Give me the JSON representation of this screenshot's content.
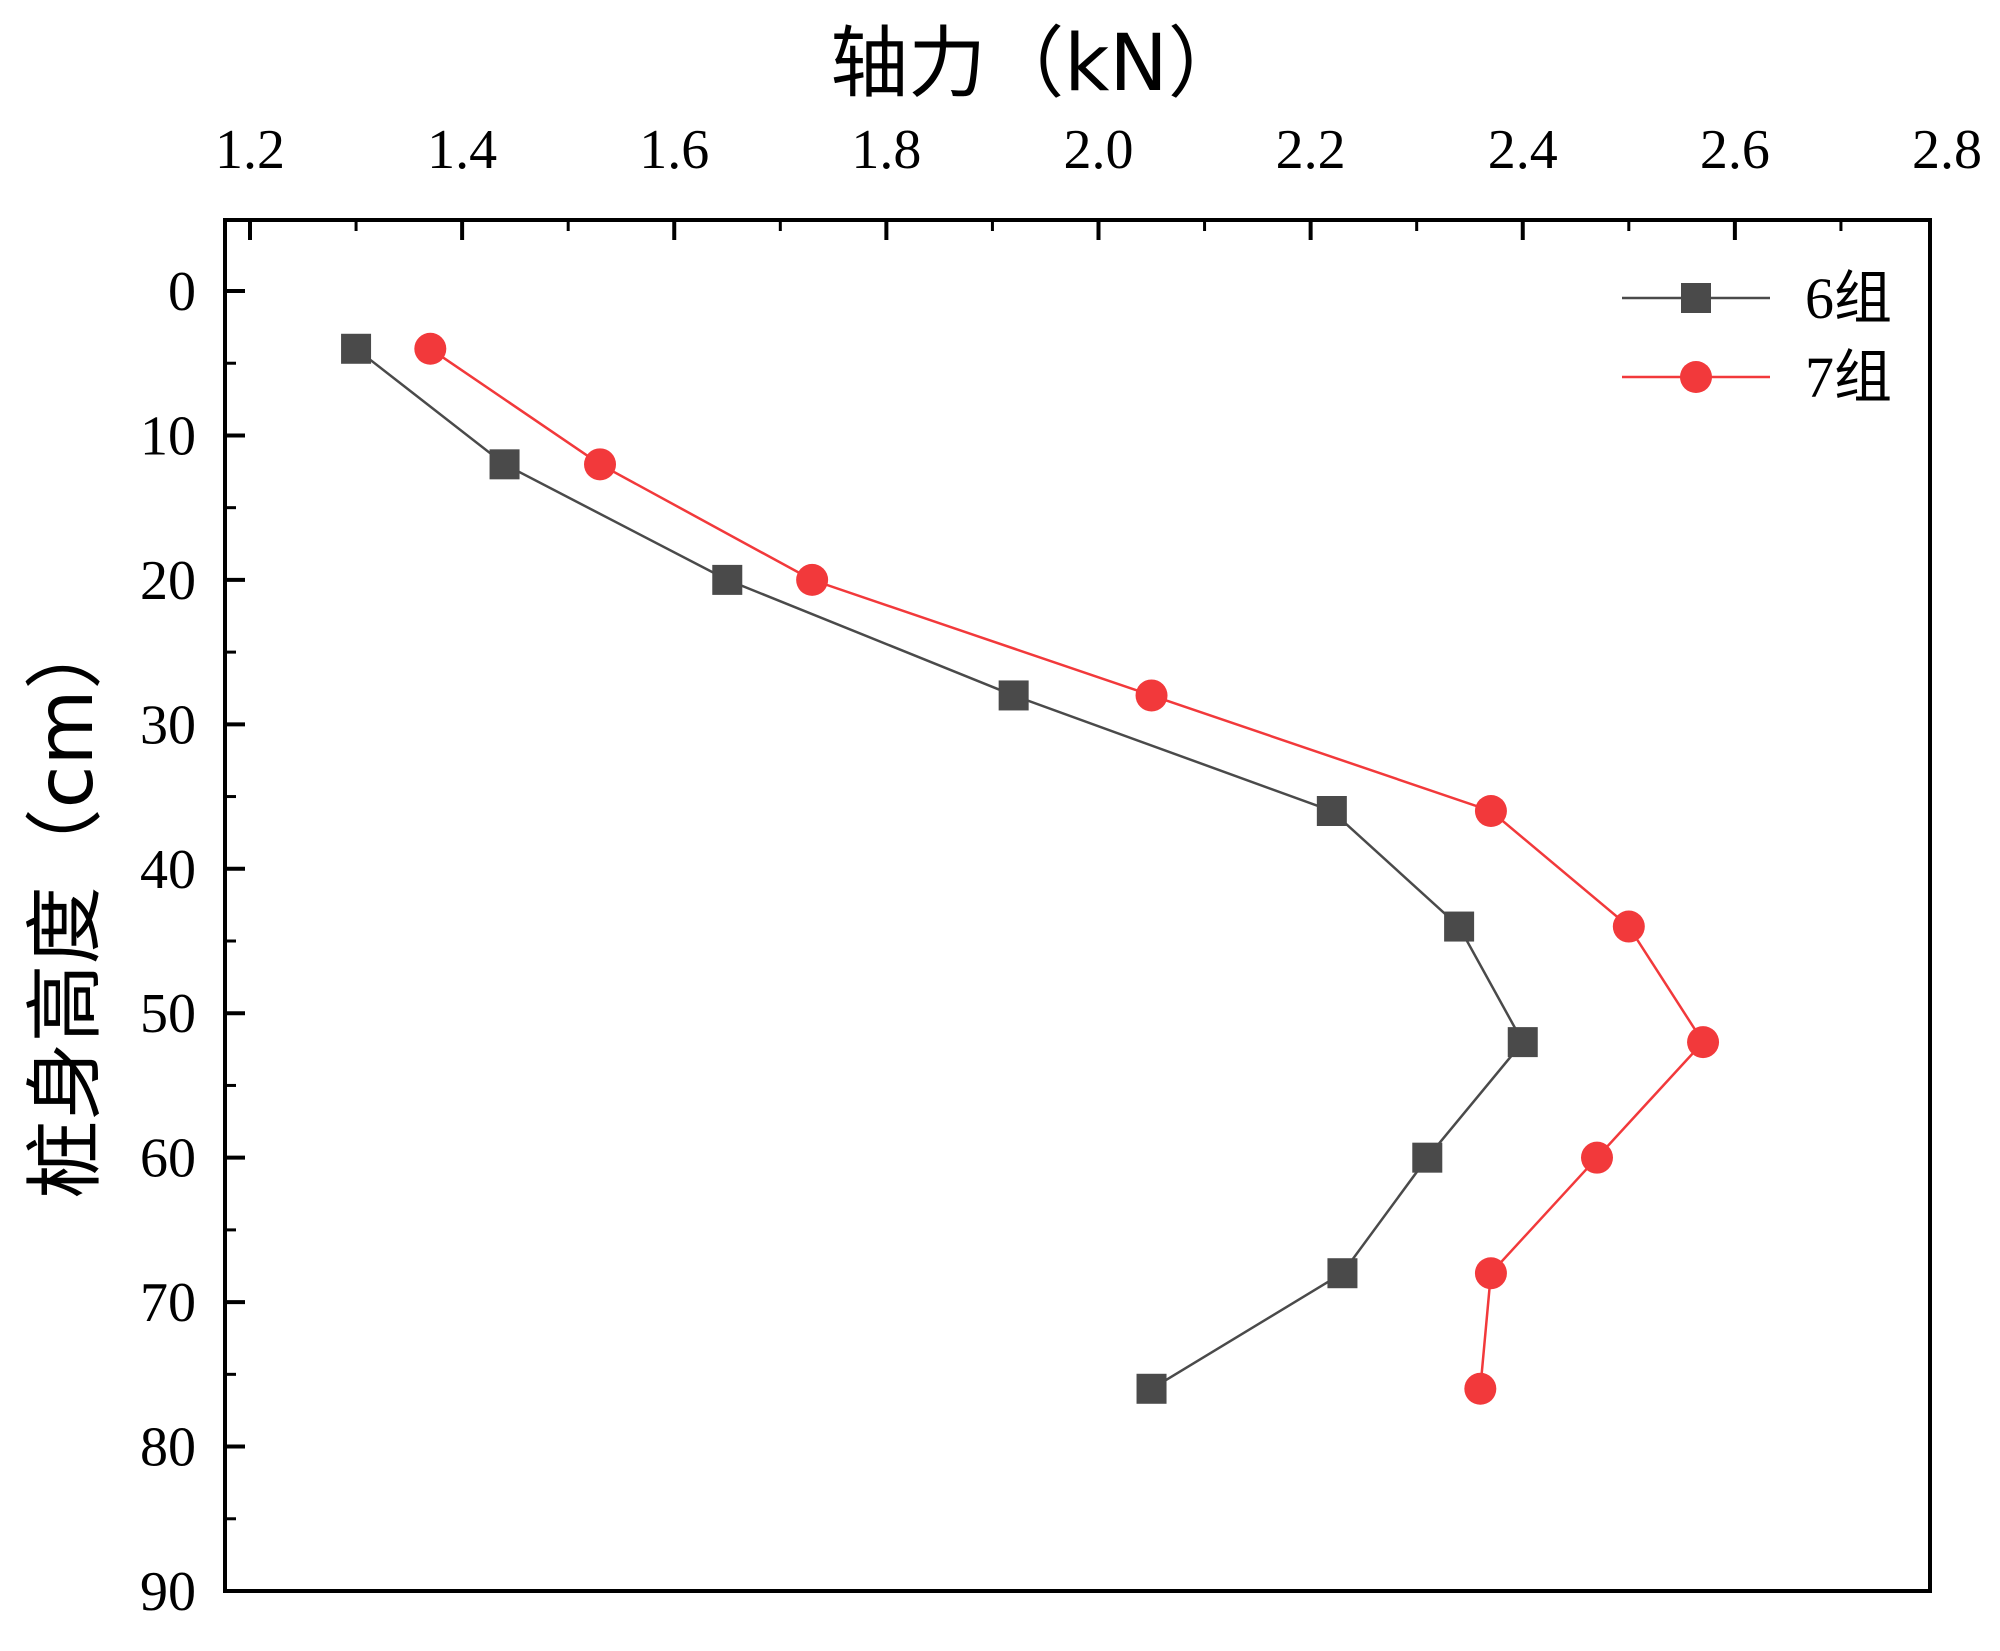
{
  "chart_data": {
    "type": "line",
    "xlabel": "轴力（kN）",
    "ylabel": "桩身高度（cm）",
    "xlim": [
      1.2,
      2.8
    ],
    "ylim": [
      0,
      90
    ],
    "x_ticks": [
      "1.2",
      "1.4",
      "1.6",
      "1.8",
      "2.0",
      "2.2",
      "2.4",
      "2.6",
      "2.8"
    ],
    "y_ticks": [
      "0",
      "10",
      "20",
      "30",
      "40",
      "50",
      "60",
      "70",
      "80",
      "90"
    ],
    "x_axis_position": "top",
    "y_axis_inverted": true,
    "legend_position": "top-right",
    "grid": false,
    "series": [
      {
        "name": "6组",
        "color": "#4a4a4a",
        "marker": "square",
        "points": [
          {
            "x": 1.3,
            "y": 4
          },
          {
            "x": 1.44,
            "y": 12
          },
          {
            "x": 1.65,
            "y": 20
          },
          {
            "x": 1.92,
            "y": 28
          },
          {
            "x": 2.22,
            "y": 36
          },
          {
            "x": 2.34,
            "y": 44
          },
          {
            "x": 2.4,
            "y": 52
          },
          {
            "x": 2.31,
            "y": 60
          },
          {
            "x": 2.23,
            "y": 68
          },
          {
            "x": 2.05,
            "y": 76
          }
        ]
      },
      {
        "name": "7组",
        "color": "#f2393b",
        "marker": "circle",
        "points": [
          {
            "x": 1.37,
            "y": 4
          },
          {
            "x": 1.53,
            "y": 12
          },
          {
            "x": 1.73,
            "y": 20
          },
          {
            "x": 2.05,
            "y": 28
          },
          {
            "x": 2.37,
            "y": 36
          },
          {
            "x": 2.5,
            "y": 44
          },
          {
            "x": 2.57,
            "y": 52
          },
          {
            "x": 2.47,
            "y": 60
          },
          {
            "x": 2.37,
            "y": 68
          },
          {
            "x": 2.36,
            "y": 76
          }
        ]
      }
    ]
  }
}
